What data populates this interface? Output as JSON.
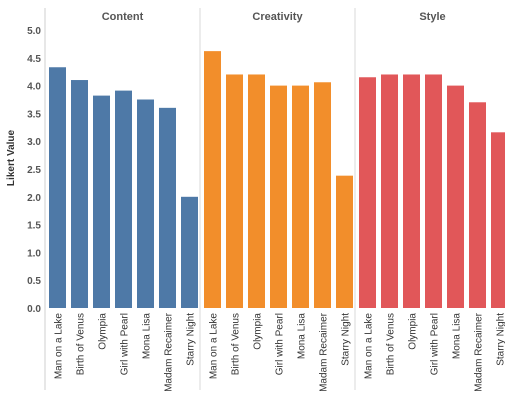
{
  "chart_data": {
    "type": "bar",
    "ylabel": "Likert Value",
    "ylim": [
      0,
      5.2
    ],
    "yticks": [
      "0.0",
      "0.5",
      "1.0",
      "1.5",
      "2.0",
      "2.5",
      "3.0",
      "3.5",
      "4.0",
      "4.5",
      "5.0"
    ],
    "categories": [
      "Man on a Lake",
      "Birth of Venus",
      "Olympia",
      "Girl with Pearl",
      "Mona Lisa",
      "Madam Recaimer",
      "Starry Night"
    ],
    "grid": false,
    "legend": "none",
    "panels": [
      {
        "name": "Content",
        "color": "#4e79a7",
        "values": [
          4.33,
          4.1,
          3.82,
          3.91,
          3.75,
          3.6,
          2.0
        ]
      },
      {
        "name": "Creativity",
        "color": "#f28e2b",
        "values": [
          4.62,
          4.2,
          4.2,
          4.0,
          4.0,
          4.06,
          2.38
        ]
      },
      {
        "name": "Style",
        "color": "#e15759",
        "values": [
          4.15,
          4.2,
          4.2,
          4.2,
          4.0,
          3.7,
          3.16
        ]
      }
    ]
  }
}
